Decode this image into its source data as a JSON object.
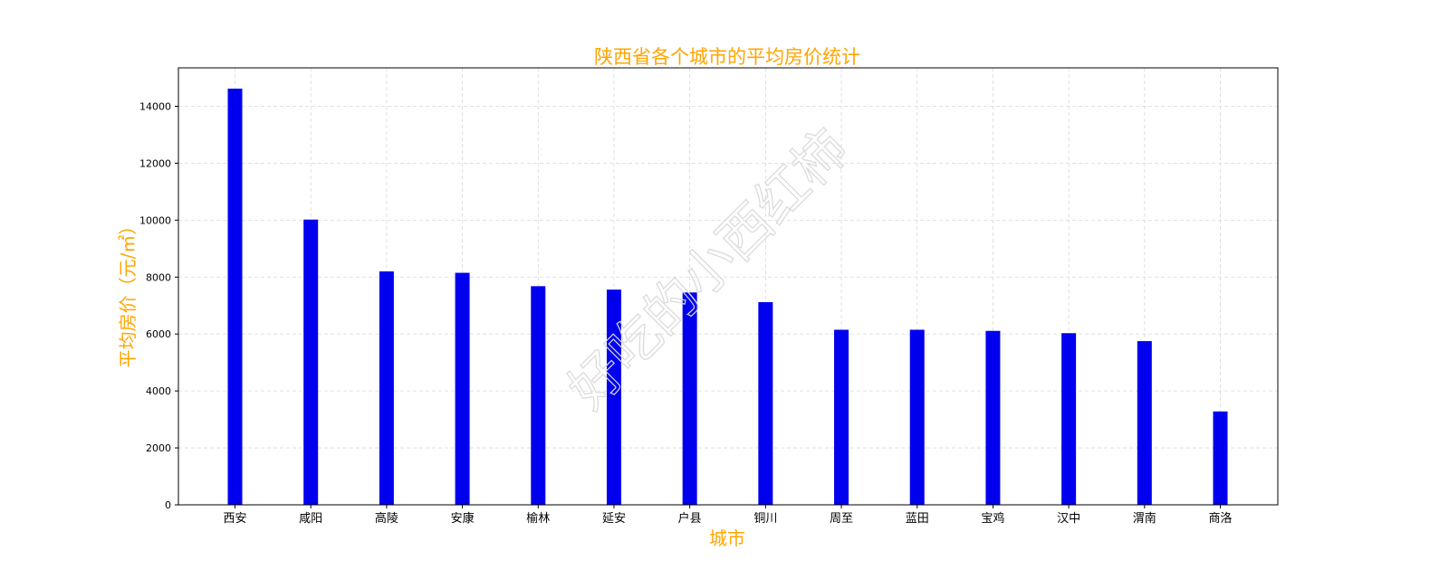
{
  "colors": {
    "bar": "#0000ee",
    "title": "#ffa500",
    "grid": "#d9d9d9",
    "axis": "#000000",
    "watermark": "#d9d9d9"
  },
  "watermark_text": "好吃的小西红柿",
  "chart_data": {
    "type": "bar",
    "title": "陕西省各个城市的平均房价统计",
    "xlabel": "城市",
    "ylabel": "平均房价（元/㎡）",
    "categories": [
      "西安",
      "咸阳",
      "高陵",
      "安康",
      "榆林",
      "延安",
      "户县",
      "铜川",
      "周至",
      "蓝田",
      "宝鸡",
      "汉中",
      "渭南",
      "商洛"
    ],
    "values": [
      14620,
      10020,
      8200,
      8150,
      7680,
      7560,
      7460,
      7120,
      6150,
      6150,
      6110,
      6030,
      5750,
      3280
    ],
    "yticks": [
      0,
      2000,
      4000,
      6000,
      8000,
      10000,
      12000,
      14000
    ],
    "ylim": [
      0,
      15350
    ],
    "grid": true,
    "legend": false
  }
}
